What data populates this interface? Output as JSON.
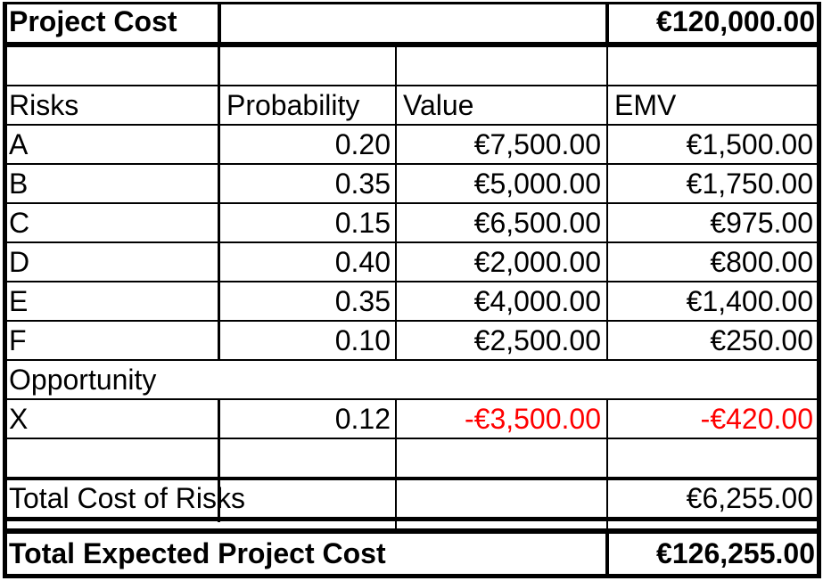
{
  "project_cost": {
    "label": "Project Cost",
    "value": "€120,000.00"
  },
  "headers": {
    "risks": "Risks",
    "probability": "Probability",
    "value": "Value",
    "emv": "EMV"
  },
  "risks": [
    {
      "name": "A",
      "probability": "0.20",
      "value": "€7,500.00",
      "emv": "€1,500.00"
    },
    {
      "name": "B",
      "probability": "0.35",
      "value": "€5,000.00",
      "emv": "€1,750.00"
    },
    {
      "name": "C",
      "probability": "0.15",
      "value": "€6,500.00",
      "emv": "€975.00"
    },
    {
      "name": "D",
      "probability": "0.40",
      "value": "€2,000.00",
      "emv": "€800.00"
    },
    {
      "name": "E",
      "probability": "0.35",
      "value": "€4,000.00",
      "emv": "€1,400.00"
    },
    {
      "name": "F",
      "probability": "0.10",
      "value": "€2,500.00",
      "emv": "€250.00"
    }
  ],
  "opportunity": {
    "label": "Opportunity",
    "row": {
      "name": "X",
      "probability": "0.12",
      "value": "-€3,500.00",
      "emv": "-€420.00"
    }
  },
  "total_risks": {
    "label": "Total Cost of Risks",
    "value": "€6,255.00"
  },
  "total_expected": {
    "label": "Total Expected Project Cost",
    "value": "€126,255.00"
  },
  "colors": {
    "negative": "#ff0000",
    "grid": "#000000"
  }
}
